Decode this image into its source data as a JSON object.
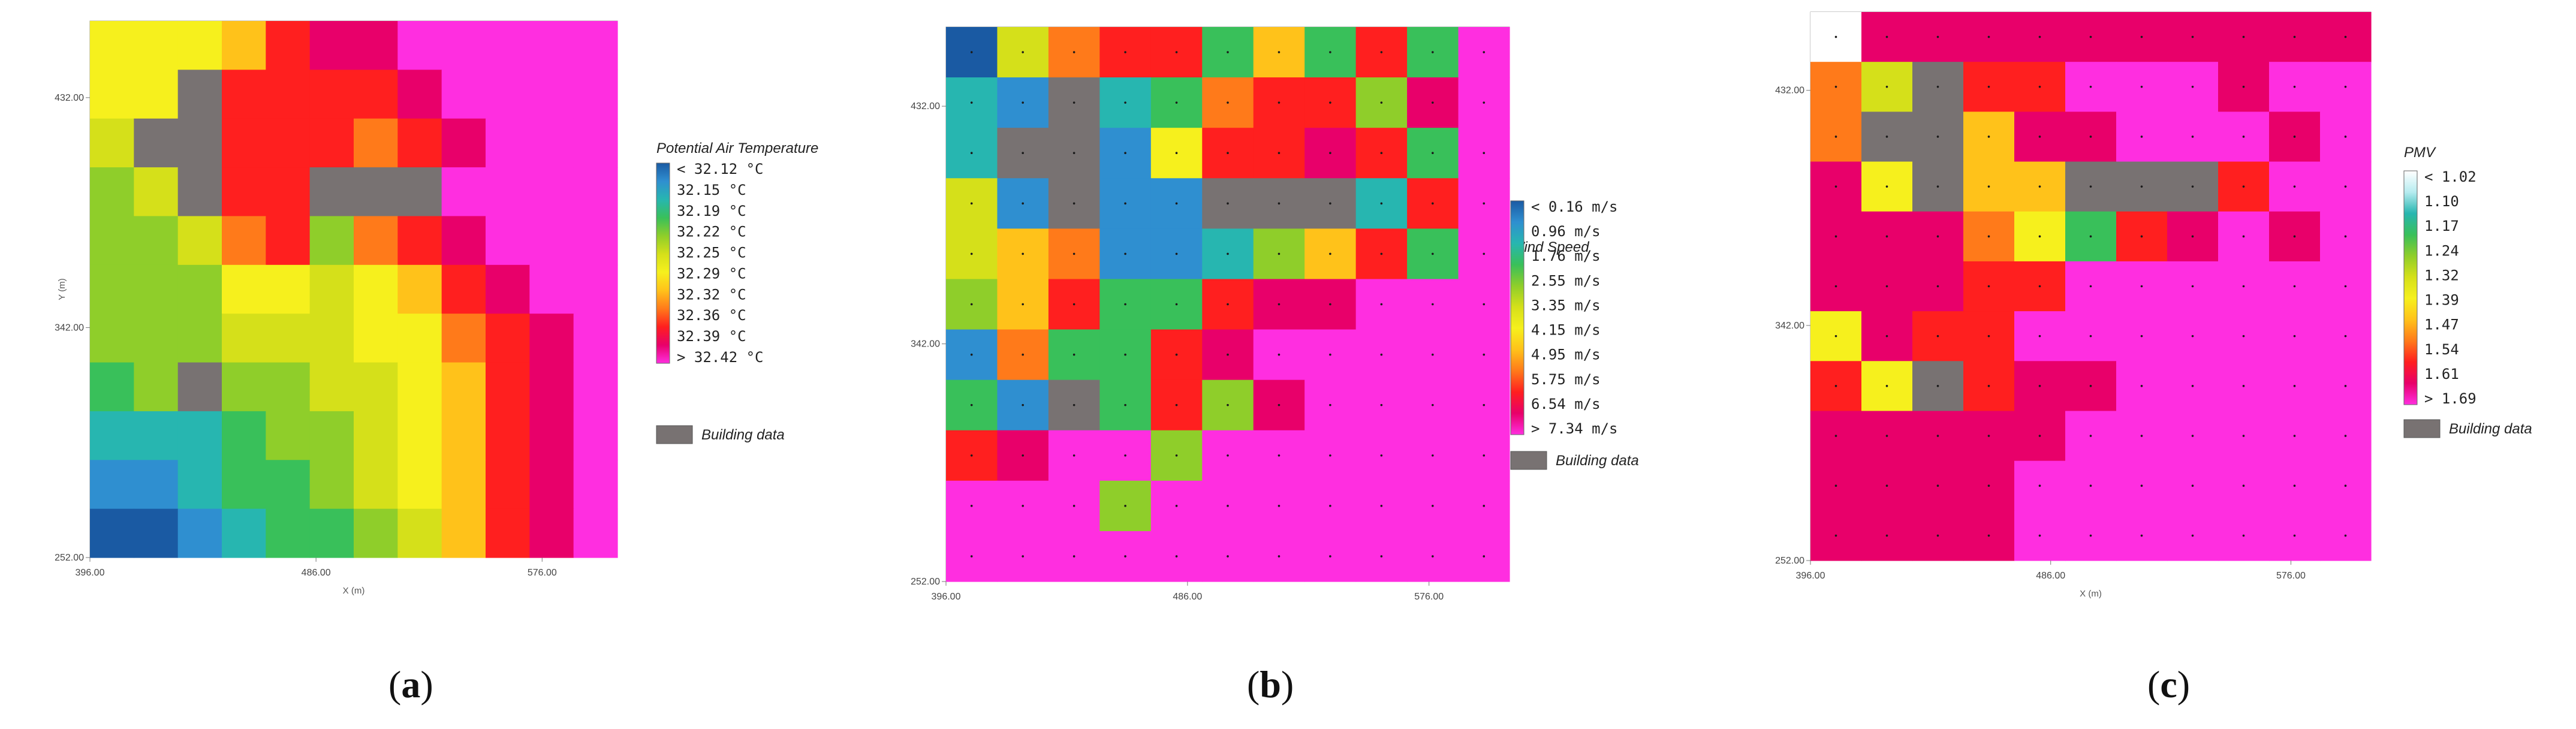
{
  "chart_data": [
    {
      "type": "heatmap",
      "panel_label": "a",
      "title": "Potential Air Temperature",
      "xlabel": "X (m)",
      "ylabel": "Y (m)",
      "x_ticks": [
        "396.00",
        "486.00",
        "576.00"
      ],
      "y_ticks": [
        "432.00",
        "342.00",
        "252.00"
      ],
      "xlim": [
        396,
        606
      ],
      "ylim": [
        252,
        462
      ],
      "grid_points": false,
      "legend_labels": [
        "< 32.12 °C",
        "32.15  °C",
        "32.19  °C",
        "32.22  °C",
        "32.25  °C",
        "32.29  °C",
        "32.32  °C",
        "32.36  °C",
        "32.39  °C",
        "> 32.42 °C"
      ],
      "building_label": "Building data",
      "legend_colors": [
        "#1a5aa3",
        "#2f8fd0",
        "#27b6b0",
        "#39c05a",
        "#8fce2a",
        "#d5e01a",
        "#f6f01d",
        "#ffc21a",
        "#ff7a1a",
        "#ff1f1f",
        "#e8006a",
        "#ff2ee0"
      ],
      "building_color": "#787272",
      "cells": [
        [
          6,
          6,
          6,
          7,
          9,
          10,
          10,
          11,
          11,
          11,
          11,
          11
        ],
        [
          6,
          6,
          12,
          9,
          9,
          9,
          9,
          10,
          11,
          11,
          11,
          11
        ],
        [
          5,
          12,
          12,
          9,
          9,
          9,
          8,
          9,
          10,
          11,
          11,
          11
        ],
        [
          4,
          5,
          12,
          9,
          9,
          12,
          12,
          12,
          11,
          11,
          11,
          11
        ],
        [
          4,
          4,
          5,
          8,
          9,
          4,
          8,
          9,
          10,
          11,
          11,
          11
        ],
        [
          4,
          4,
          4,
          6,
          6,
          5,
          6,
          7,
          9,
          10,
          11,
          11
        ],
        [
          4,
          4,
          4,
          5,
          5,
          5,
          6,
          6,
          8,
          9,
          10,
          11
        ],
        [
          3,
          4,
          12,
          4,
          4,
          5,
          5,
          6,
          7,
          9,
          10,
          11
        ],
        [
          2,
          2,
          2,
          3,
          4,
          4,
          5,
          6,
          7,
          9,
          10,
          11
        ],
        [
          1,
          1,
          2,
          3,
          3,
          4,
          5,
          6,
          7,
          9,
          10,
          11
        ],
        [
          0,
          0,
          1,
          2,
          3,
          3,
          4,
          5,
          7,
          9,
          10,
          11
        ]
      ]
    },
    {
      "type": "heatmap",
      "panel_label": "b",
      "title": "Wind Speed",
      "xlabel": "",
      "ylabel": "",
      "x_ticks": [
        "396.00",
        "486.00",
        "576.00"
      ],
      "y_ticks": [
        "432.00",
        "342.00",
        "252.00"
      ],
      "xlim": [
        396,
        606
      ],
      "ylim": [
        252,
        462
      ],
      "grid_points": true,
      "legend_labels": [
        "< 0.16 m/s",
        "0.96  m/s",
        "1.76  m/s",
        "2.55  m/s",
        "3.35  m/s",
        "4.15  m/s",
        "4.95  m/s",
        "5.75  m/s",
        "6.54  m/s",
        "> 7.34 m/s"
      ],
      "building_label": "Building data",
      "legend_colors": [
        "#1a5aa3",
        "#2f8fd0",
        "#27b6b0",
        "#39c05a",
        "#8fce2a",
        "#d5e01a",
        "#f6f01d",
        "#ffc21a",
        "#ff7a1a",
        "#ff1f1f",
        "#e8006a",
        "#ff2ee0"
      ],
      "building_color": "#787272",
      "cells": [
        [
          0,
          5,
          8,
          9,
          9,
          3,
          7,
          3,
          9,
          3,
          11
        ],
        [
          2,
          1,
          12,
          2,
          3,
          8,
          9,
          9,
          4,
          10,
          11
        ],
        [
          2,
          12,
          12,
          1,
          6,
          9,
          9,
          10,
          9,
          3,
          11
        ],
        [
          5,
          1,
          12,
          1,
          1,
          12,
          12,
          12,
          2,
          9,
          11
        ],
        [
          5,
          7,
          8,
          1,
          1,
          2,
          4,
          7,
          9,
          3,
          11
        ],
        [
          4,
          7,
          9,
          3,
          3,
          9,
          10,
          10,
          11,
          11,
          11
        ],
        [
          1,
          8,
          3,
          3,
          9,
          10,
          11,
          11,
          11,
          11,
          11
        ],
        [
          3,
          1,
          12,
          3,
          9,
          4,
          10,
          11,
          11,
          11,
          11
        ],
        [
          9,
          10,
          11,
          11,
          4,
          11,
          11,
          11,
          11,
          11,
          11
        ],
        [
          11,
          11,
          11,
          4,
          11,
          11,
          11,
          11,
          11,
          11,
          11
        ],
        [
          11,
          11,
          11,
          11,
          11,
          11,
          11,
          11,
          11,
          11,
          11
        ]
      ]
    },
    {
      "type": "heatmap",
      "panel_label": "c",
      "title": "PMV",
      "xlabel": "X (m)",
      "ylabel": "",
      "x_ticks": [
        "396.00",
        "486.00",
        "576.00"
      ],
      "y_ticks": [
        "432.00",
        "342.00",
        "252.00"
      ],
      "xlim": [
        396,
        606
      ],
      "ylim": [
        252,
        462
      ],
      "grid_points": true,
      "legend_labels": [
        "< 1.02",
        "1.10",
        "1.17",
        "1.24",
        "1.32",
        "1.39",
        "1.47",
        "1.54",
        "1.61",
        "> 1.69"
      ],
      "building_label": "Building data",
      "legend_colors": [
        "#ffffff",
        "#b6ecf0",
        "#27b6b0",
        "#39c05a",
        "#8fce2a",
        "#d5e01a",
        "#f6f01d",
        "#ffc21a",
        "#ff7a1a",
        "#ff1f1f",
        "#e8006a",
        "#ff2ee0"
      ],
      "building_color": "#787272",
      "cells": [
        [
          0,
          10,
          10,
          10,
          10,
          10,
          10,
          10,
          10,
          10,
          10
        ],
        [
          8,
          5,
          12,
          9,
          9,
          11,
          11,
          11,
          10,
          11,
          11
        ],
        [
          8,
          12,
          12,
          7,
          10,
          10,
          11,
          11,
          11,
          10,
          11
        ],
        [
          10,
          6,
          12,
          7,
          7,
          12,
          12,
          12,
          9,
          11,
          11
        ],
        [
          10,
          10,
          10,
          8,
          6,
          3,
          9,
          10,
          11,
          10,
          11
        ],
        [
          10,
          10,
          10,
          9,
          9,
          11,
          11,
          11,
          11,
          11,
          11
        ],
        [
          6,
          10,
          9,
          9,
          11,
          11,
          11,
          11,
          11,
          11,
          11
        ],
        [
          9,
          6,
          12,
          9,
          10,
          10,
          11,
          11,
          11,
          11,
          11
        ],
        [
          10,
          10,
          10,
          10,
          10,
          11,
          11,
          11,
          11,
          11,
          11
        ],
        [
          10,
          10,
          10,
          10,
          11,
          11,
          11,
          11,
          11,
          11,
          11
        ],
        [
          10,
          10,
          10,
          10,
          11,
          11,
          11,
          11,
          11,
          11,
          11
        ]
      ]
    }
  ]
}
